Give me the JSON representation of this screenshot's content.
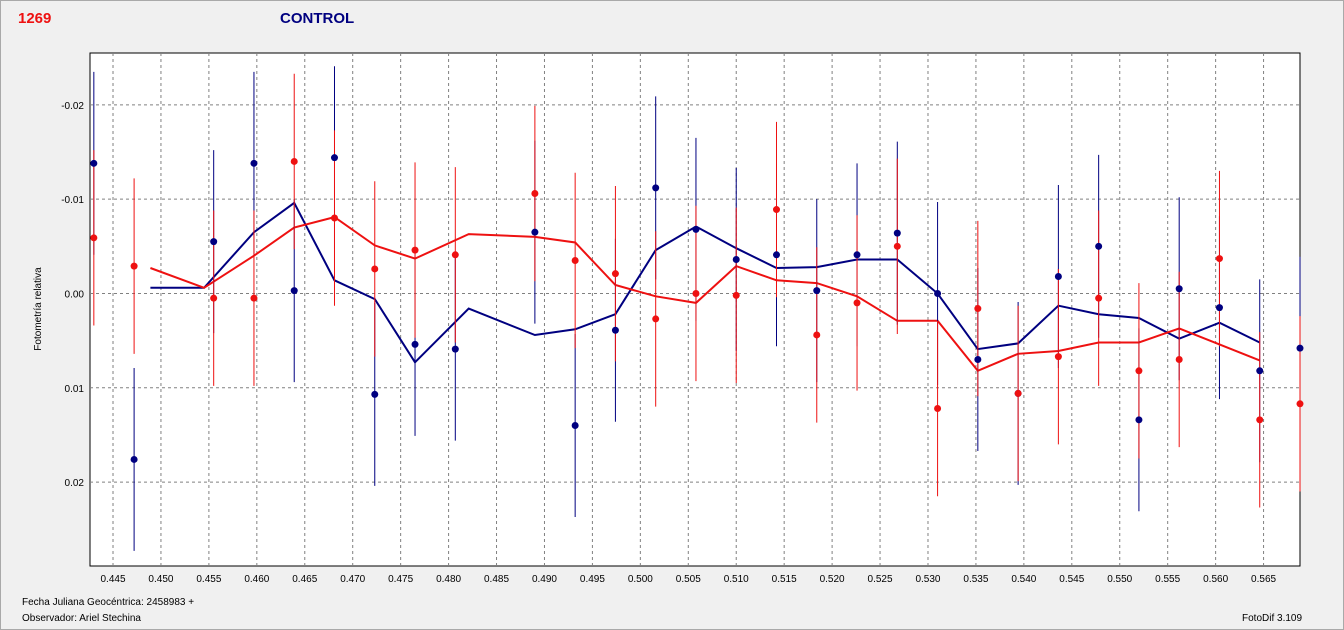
{
  "header": {
    "star_id": "1269",
    "series_title": "CONTROL"
  },
  "footer": {
    "jd_label": "Fecha Juliana Geocéntrica: 2458983 +",
    "observer_label": "Observador: Ariel Stechina",
    "software": "FotoDif 3.109"
  },
  "colors": {
    "blue": "#000080",
    "red": "#ee1111",
    "grid": "#808080",
    "background": "#ffffff"
  },
  "chart_data": {
    "type": "scatter",
    "ylabel": "Fotometría relativa",
    "xlabel": "",
    "xlim": [
      0.4426,
      0.5688
    ],
    "ylim": [
      0.0289,
      -0.0255
    ],
    "y_inverted": true,
    "grid": true,
    "x_ticks": [
      "0.445",
      "0.450",
      "0.455",
      "0.460",
      "0.465",
      "0.470",
      "0.475",
      "0.480",
      "0.485",
      "0.490",
      "0.495",
      "0.500",
      "0.505",
      "0.510",
      "0.515",
      "0.520",
      "0.525",
      "0.530",
      "0.535",
      "0.540",
      "0.545",
      "0.550",
      "0.555",
      "0.560",
      "0.565"
    ],
    "y_ticks": [
      "-0.02",
      "-0.01",
      "0.00",
      "0.01",
      "0.02"
    ],
    "x": [
      0.443,
      0.4472,
      0.4555,
      0.4597,
      0.4639,
      0.4681,
      0.4723,
      0.4765,
      0.4807,
      0.489,
      0.4932,
      0.4974,
      0.5016,
      0.5058,
      0.51,
      0.5142,
      0.5184,
      0.5226,
      0.5268,
      0.531,
      0.5352,
      0.5394,
      0.5436,
      0.5478,
      0.552,
      0.5562,
      0.5604,
      0.5646,
      0.5688
    ],
    "series": [
      {
        "color": "#000080",
        "marker": "dot",
        "values": [
          -0.0138,
          0.0176,
          -0.0055,
          -0.0138,
          -0.0003,
          -0.0144,
          0.0107,
          0.0054,
          0.0059,
          -0.0065,
          0.014,
          0.0039,
          -0.0112,
          -0.0068,
          -0.0036,
          -0.0041,
          -0.0003,
          -0.0041,
          -0.0064,
          0.0,
          0.007,
          0.0106,
          -0.0018,
          -0.005,
          0.0134,
          -0.0005,
          0.0015,
          0.0082,
          0.0058
        ],
        "errors": [
          0.0097,
          0.0097,
          0.0097,
          0.0097,
          0.0097,
          0.0097,
          0.0097,
          0.0097,
          0.0097,
          0.0097,
          0.0097,
          0.0097,
          0.0097,
          0.0097,
          0.0097,
          0.0097,
          0.0097,
          0.0097,
          0.0097,
          0.0097,
          0.0097,
          0.0097,
          0.0097,
          0.0097,
          0.0097,
          0.0097,
          0.0097,
          0.0097,
          0.0097
        ],
        "trend_x": [
          0.4489,
          0.4545,
          0.4597,
          0.4639,
          0.4681,
          0.4723,
          0.4765,
          0.4821,
          0.489,
          0.4932,
          0.4974,
          0.5016,
          0.5058,
          0.51,
          0.5142,
          0.5184,
          0.5226,
          0.5268,
          0.531,
          0.5352,
          0.5394,
          0.5436,
          0.5478,
          0.552,
          0.5562,
          0.5604,
          0.5646
        ],
        "trend_y": [
          -0.0006,
          -0.0006,
          -0.0065,
          -0.0096,
          -0.0014,
          0.0006,
          0.0073,
          0.0016,
          0.0044,
          0.0038,
          0.0022,
          -0.0046,
          -0.0071,
          -0.0048,
          -0.0027,
          -0.0028,
          -0.0036,
          -0.0036,
          0.0,
          0.0059,
          0.0053,
          0.0013,
          0.0022,
          0.0026,
          0.0048,
          0.0031,
          0.0052
        ]
      },
      {
        "color": "#ee1111",
        "marker": "dot",
        "values": [
          -0.0059,
          -0.0029,
          0.0005,
          0.0005,
          -0.014,
          -0.008,
          -0.0026,
          -0.0046,
          -0.0041,
          -0.0106,
          -0.0035,
          -0.0021,
          0.0027,
          0.0,
          0.0002,
          -0.0089,
          0.0044,
          0.001,
          -0.005,
          0.0122,
          0.0016,
          0.0106,
          0.0067,
          0.0005,
          0.0082,
          0.007,
          -0.0037,
          0.0134,
          0.0117
        ],
        "errors": [
          0.0093,
          0.0093,
          0.0093,
          0.0093,
          0.0093,
          0.0093,
          0.0093,
          0.0093,
          0.0093,
          0.0093,
          0.0093,
          0.0093,
          0.0093,
          0.0093,
          0.0093,
          0.0093,
          0.0093,
          0.0093,
          0.0093,
          0.0093,
          0.0093,
          0.0093,
          0.0093,
          0.0093,
          0.0093,
          0.0093,
          0.0093,
          0.0093,
          0.0093
        ],
        "trend_x": [
          0.4489,
          0.4545,
          0.4597,
          0.4639,
          0.4681,
          0.4723,
          0.4765,
          0.4821,
          0.489,
          0.4932,
          0.4974,
          0.5016,
          0.5058,
          0.51,
          0.5142,
          0.5184,
          0.5226,
          0.5268,
          0.531,
          0.5352,
          0.5394,
          0.5436,
          0.5478,
          0.552,
          0.5562,
          0.5604,
          0.5646
        ],
        "trend_y": [
          -0.0027,
          -0.0006,
          -0.004,
          -0.007,
          -0.0081,
          -0.0051,
          -0.0037,
          -0.0063,
          -0.006,
          -0.0054,
          -0.0009,
          0.0003,
          0.001,
          -0.0029,
          -0.0014,
          -0.0011,
          0.0003,
          0.0029,
          0.0029,
          0.0082,
          0.0064,
          0.0061,
          0.0052,
          0.0052,
          0.0037,
          0.0054,
          0.0071
        ]
      }
    ]
  }
}
